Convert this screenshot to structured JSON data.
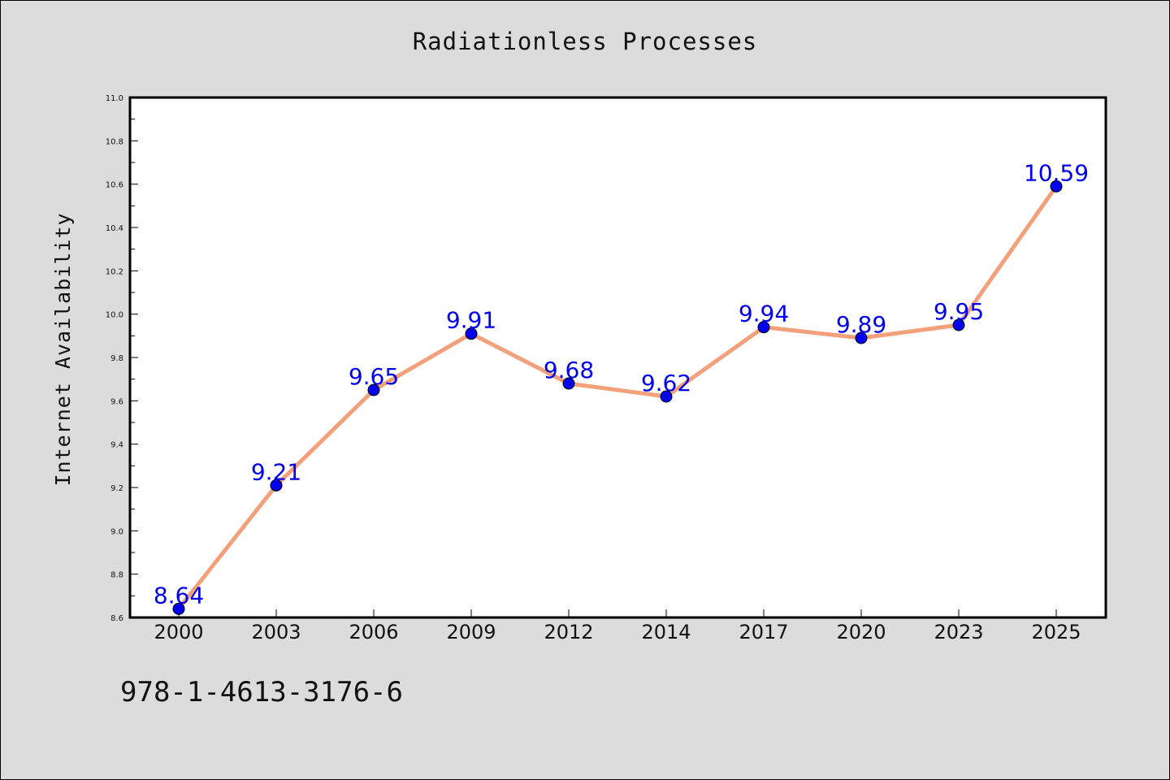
{
  "chart_data": {
    "type": "line",
    "title": "Radiationless Processes",
    "xlabel": "",
    "ylabel": "Internet Availability",
    "categories": [
      "2000",
      "2003",
      "2006",
      "2009",
      "2012",
      "2014",
      "2017",
      "2020",
      "2023",
      "2025"
    ],
    "series": [
      {
        "values": [
          8.64,
          9.21,
          9.65,
          9.91,
          9.68,
          9.62,
          9.94,
          9.89,
          9.95,
          10.59
        ],
        "line_color": "#f4a07a",
        "marker_color": "#0000ee",
        "label_color": "#0000ee"
      }
    ],
    "ylim": [
      8.6,
      11.0
    ],
    "yticks": [
      "8.6",
      "8.8",
      "9.0",
      "9.2",
      "9.4",
      "9.6",
      "9.8",
      "10.0",
      "10.2",
      "10.4",
      "10.6",
      "10.8",
      "11.0"
    ],
    "grid": false,
    "data_labels": [
      "8.64",
      "9.21",
      "9.65",
      "9.91",
      "9.68",
      "9.62",
      "9.94",
      "9.89",
      "9.95",
      "10.59"
    ]
  },
  "footer": {
    "isbn": "978-1-4613-3176-6"
  }
}
